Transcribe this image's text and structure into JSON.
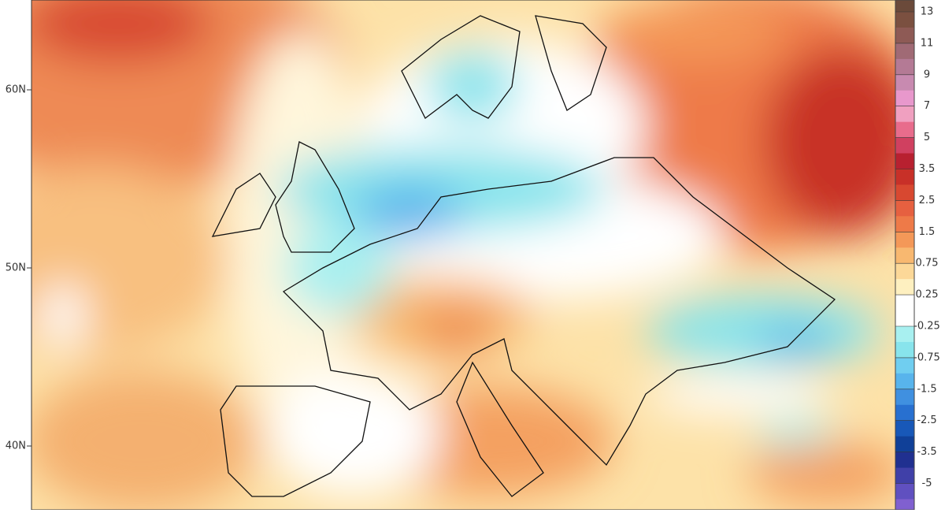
{
  "map": {
    "lat_labels": [
      "60N",
      "50N",
      "40N"
    ],
    "colorbar": {
      "labels": [
        13,
        11,
        9,
        7,
        5,
        3.5,
        2.5,
        1.5,
        0.75,
        0.25,
        -0.25,
        -0.75,
        -1.5,
        -2.5,
        -3.5,
        -5
      ],
      "colors": [
        "#6b4a3a",
        "#7b5040",
        "#8e5a55",
        "#a06a75",
        "#b47a95",
        "#c88ab0",
        "#e898cc",
        "#f0a0c0",
        "#e86c8c",
        "#d04060",
        "#b82030",
        "#c83028",
        "#d84830",
        "#e66040",
        "#ee7a48",
        "#f49858",
        "#f8b870",
        "#fcd898",
        "#fef0c0",
        "#ffffff",
        "#ffffff",
        "#a8f0f0",
        "#88e4ec",
        "#70cef0",
        "#58b4ec",
        "#4090e0",
        "#2870d0",
        "#1858b8",
        "#104098",
        "#203090",
        "#4040a8",
        "#6050c0",
        "#8060d0",
        "#a070e0"
      ]
    }
  }
}
